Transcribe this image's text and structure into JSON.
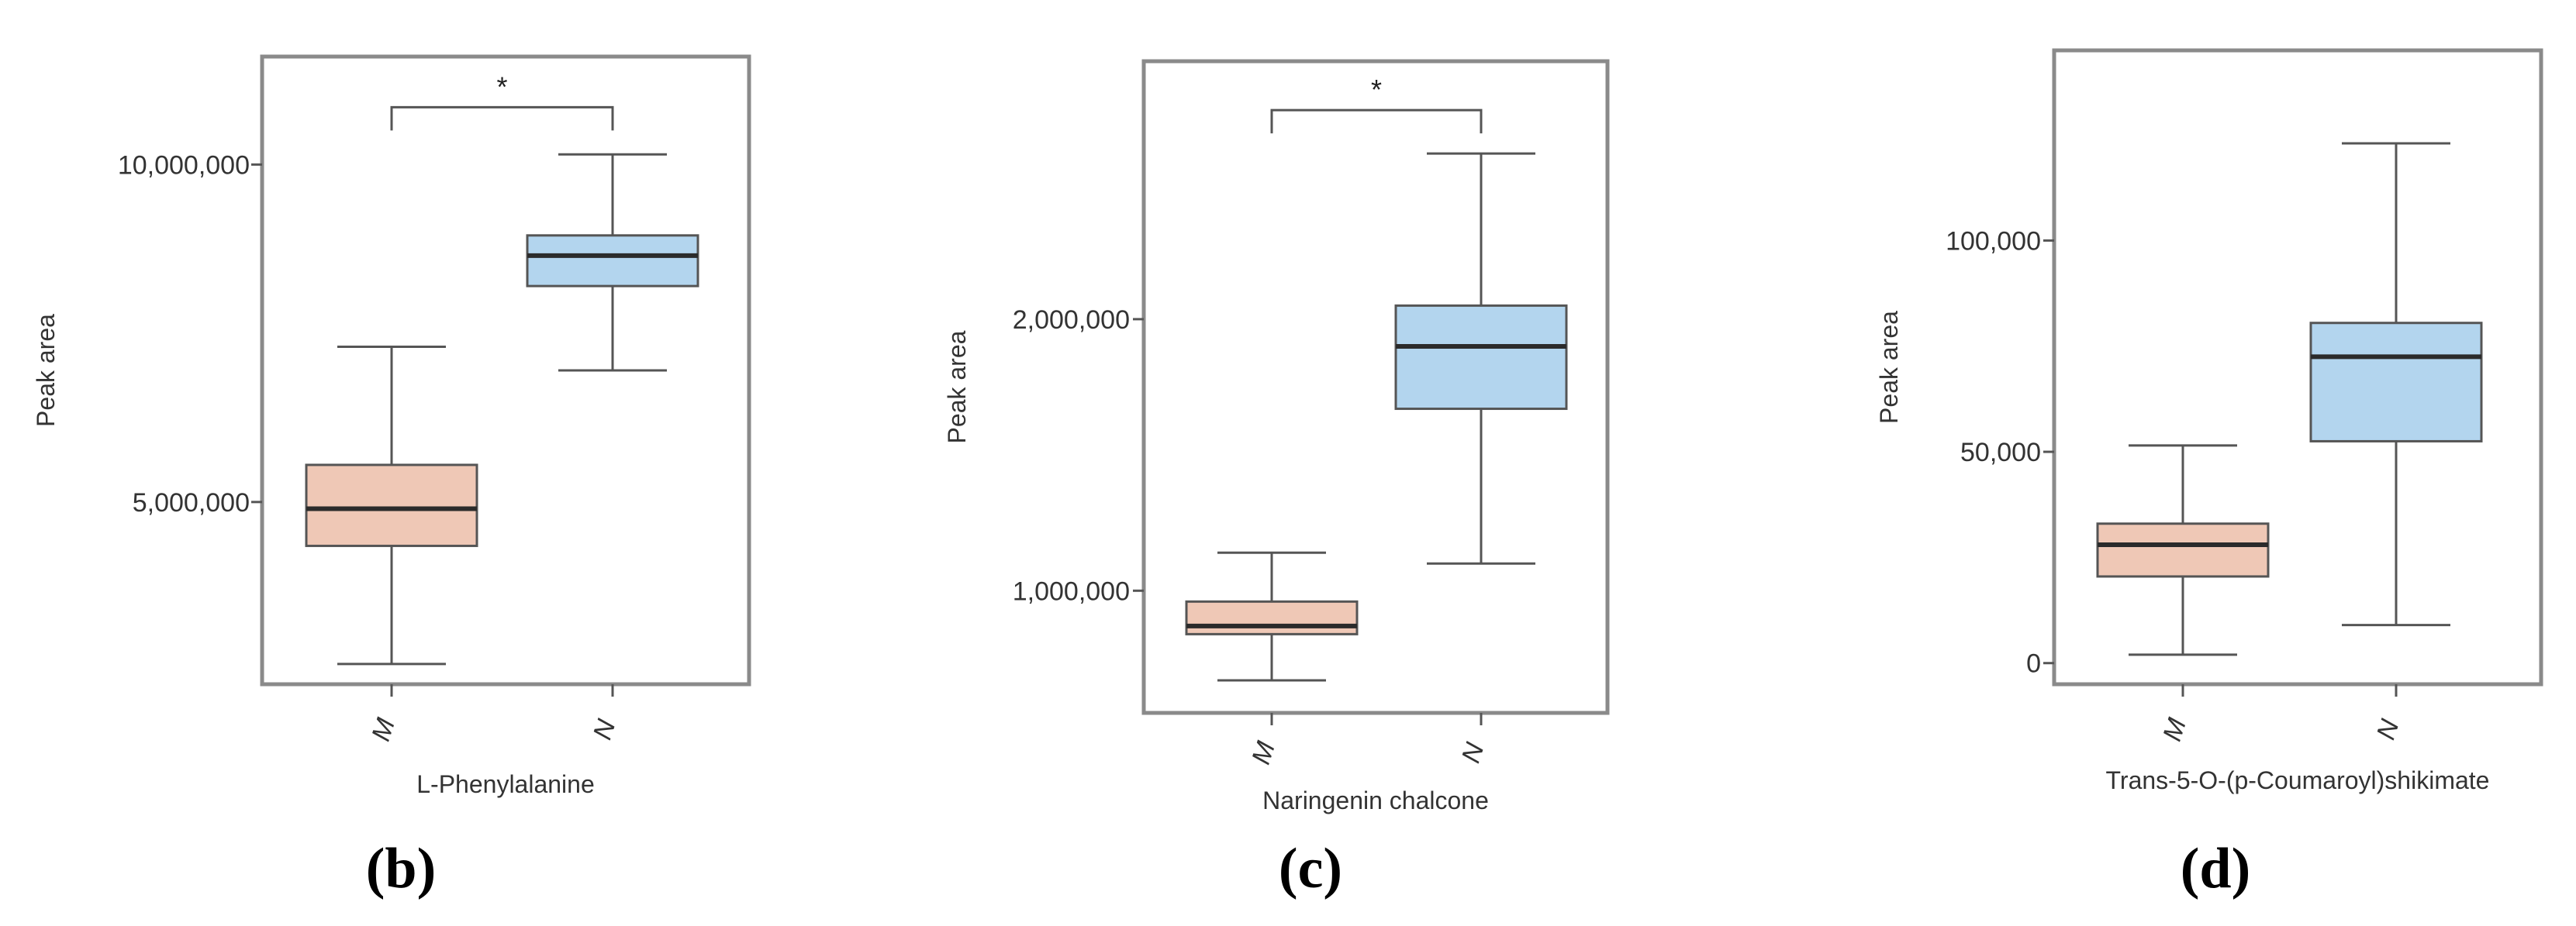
{
  "chart_data": [
    {
      "type": "box",
      "panel_label": "(b)",
      "title": "",
      "xlabel": "L-Phenylalanine",
      "ylabel": "Peak area",
      "ylim": [
        2300000,
        11600000
      ],
      "yticks": [
        5000000,
        10000000
      ],
      "ytick_labels": [
        "5,000,000",
        "10,000,000"
      ],
      "categories": [
        "M",
        "N"
      ],
      "series": [
        {
          "category": "M",
          "whisker_low": 2600000,
          "q1": 4350000,
          "median": 4900000,
          "q3": 5550000,
          "whisker_high": 7300000,
          "color": "#efc8b6"
        },
        {
          "category": "N",
          "whisker_low": 6950000,
          "q1": 8200000,
          "median": 8650000,
          "q3": 8950000,
          "whisker_high": 10150000,
          "color": "#b3d5ee"
        }
      ],
      "significance": {
        "from": "M",
        "to": "N",
        "label": "*",
        "level": 10850000
      }
    },
    {
      "type": "box",
      "panel_label": "(c)",
      "title": "",
      "xlabel": "Naringenin chalcone",
      "ylabel": "Peak area",
      "ylim": [
        550000,
        2950000
      ],
      "yticks": [
        1000000,
        2000000
      ],
      "ytick_labels": [
        "1,000,000",
        "2,000,000"
      ],
      "categories": [
        "M",
        "N"
      ],
      "series": [
        {
          "category": "M",
          "whisker_low": 670000,
          "q1": 840000,
          "median": 870000,
          "q3": 960000,
          "whisker_high": 1140000,
          "color": "#efc8b6"
        },
        {
          "category": "N",
          "whisker_low": 1100000,
          "q1": 1670000,
          "median": 1900000,
          "q3": 2050000,
          "whisker_high": 2610000,
          "color": "#b3d5ee"
        }
      ],
      "significance": {
        "from": "M",
        "to": "N",
        "label": "*",
        "level": 2770000
      }
    },
    {
      "type": "box",
      "panel_label": "(d)",
      "title": "",
      "xlabel": "Trans-5-O-(p-Coumaroyl)shikimate",
      "ylabel": "Peak area",
      "ylim": [
        -5000,
        145000
      ],
      "yticks": [
        0,
        50000,
        100000
      ],
      "ytick_labels": [
        "0",
        "50,000",
        "100,000"
      ],
      "categories": [
        "M",
        "N"
      ],
      "series": [
        {
          "category": "M",
          "whisker_low": 2000,
          "q1": 20500,
          "median": 28000,
          "q3": 33000,
          "whisker_high": 51500,
          "color": "#efc8b6"
        },
        {
          "category": "N",
          "whisker_low": 9000,
          "q1": 52500,
          "median": 72500,
          "q3": 80500,
          "whisker_high": 123000,
          "color": "#b3d5ee"
        }
      ],
      "significance": null
    }
  ]
}
